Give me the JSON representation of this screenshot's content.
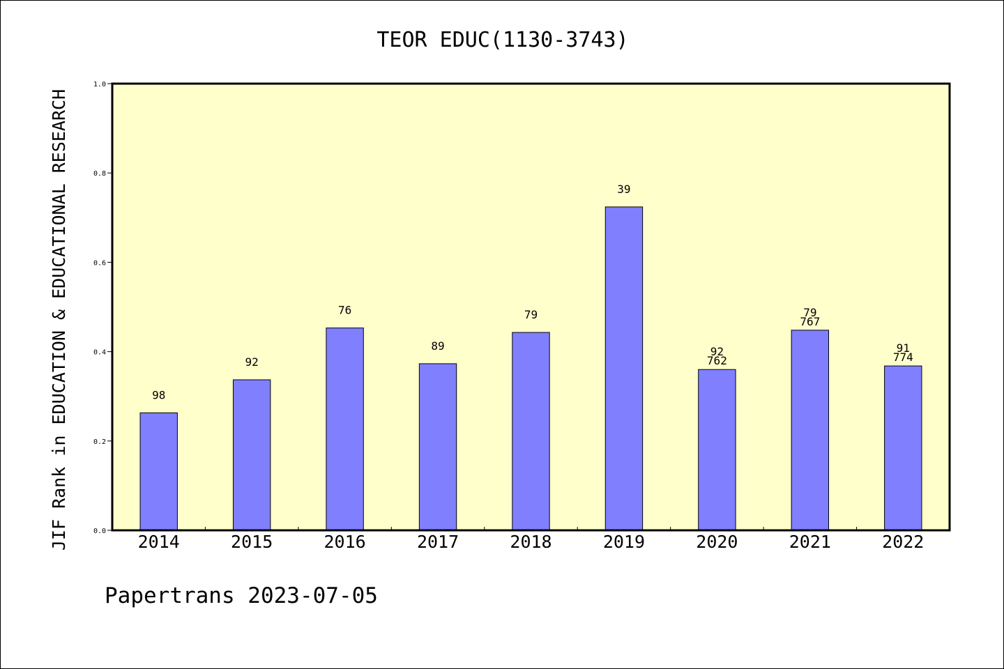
{
  "chart_data": {
    "type": "bar",
    "title": "TEOR EDUC(1130-3743)",
    "ylabel": "JIF Rank in EDUCATION & EDUCATIONAL RESEARCH",
    "xlabel": "",
    "categories": [
      "2014",
      "2015",
      "2016",
      "2017",
      "2018",
      "2019",
      "2020",
      "2021",
      "2022"
    ],
    "values": [
      0.263,
      0.337,
      0.453,
      0.373,
      0.443,
      0.724,
      0.36,
      0.448,
      0.368
    ],
    "rank_labels": [
      "98",
      "92",
      "76",
      "89",
      "79",
      "39",
      "92",
      "79",
      "91"
    ],
    "total_labels": [
      "",
      "",
      "",
      "",
      "",
      "",
      "762",
      "767",
      "774"
    ],
    "ylim": [
      0,
      1.0
    ],
    "yticks": [
      "0.0",
      "0.2",
      "0.4",
      "0.6",
      "0.8",
      "1.0"
    ],
    "grid": false,
    "colors": {
      "plot_background": "#ffffcc",
      "bar": "#8080ff",
      "bar_edge": "#000000"
    }
  },
  "footer": {
    "credit": "Papertrans 2023-07-05"
  }
}
